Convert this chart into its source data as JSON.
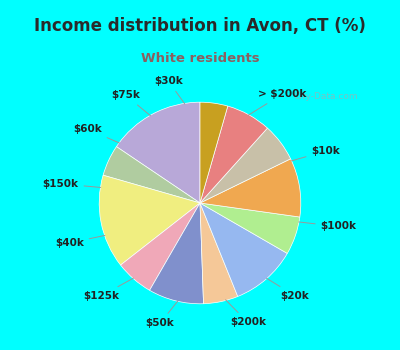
{
  "title": "Income distribution in Avon, CT (%)",
  "subtitle": "White residents",
  "title_color": "#2a2a2a",
  "subtitle_color": "#8b6060",
  "background_outer": "#00ffff",
  "background_inner": "#e0f5ea",
  "watermark": "City-Data.com",
  "labels": [
    "> $200k",
    "$10k",
    "$100k",
    "$20k",
    "$200k",
    "$50k",
    "$125k",
    "$40k",
    "$150k",
    "$60k",
    "$75k",
    "$30k"
  ],
  "values": [
    14.0,
    4.5,
    13.5,
    5.5,
    8.0,
    5.0,
    9.5,
    5.5,
    8.5,
    5.5,
    6.5,
    4.0
  ],
  "colors": [
    "#b8a8d8",
    "#b0cca0",
    "#f0ee80",
    "#f0a8b8",
    "#8090cc",
    "#f5c898",
    "#96b8f0",
    "#b0ee90",
    "#f0a850",
    "#c8c0a8",
    "#e88080",
    "#c8a020"
  ],
  "label_fontsize": 7.5,
  "title_fontsize": 12,
  "subtitle_fontsize": 9.5,
  "startangle": 90,
  "label_distance": 1.22
}
